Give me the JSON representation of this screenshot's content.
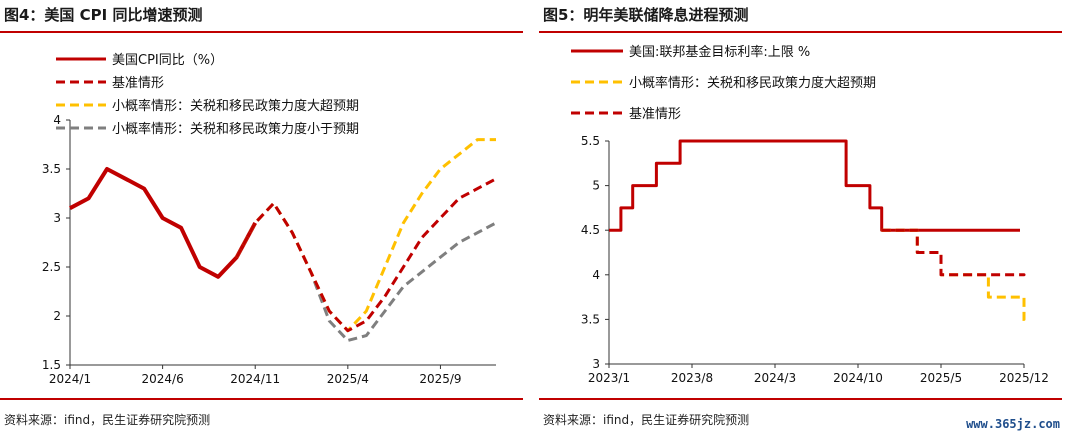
{
  "chart_data": [
    {
      "type": "line",
      "title": "图4：美国 CPI 同比增速预测",
      "xlabel": "",
      "ylabel": "",
      "ylim": [
        1.5,
        4
      ],
      "yticks": [
        "1.5",
        "2",
        "2.5",
        "3",
        "3.5",
        "4"
      ],
      "xticks": [
        "2024/1",
        "2024/6",
        "2024/11",
        "2025/4",
        "2025/9"
      ],
      "x_range": [
        "2024/1",
        "2025/12"
      ],
      "legend_position": "top-left",
      "series": [
        {
          "name": "美国CPI同比（%）",
          "color": "#c00000",
          "style": "solid",
          "x": [
            "2024/1",
            "2024/2",
            "2024/3",
            "2024/4",
            "2024/5",
            "2024/6",
            "2024/7",
            "2024/8",
            "2024/9",
            "2024/10",
            "2024/11"
          ],
          "values": [
            3.1,
            3.2,
            3.5,
            3.4,
            3.3,
            3.0,
            2.9,
            2.5,
            2.4,
            2.6,
            2.95
          ]
        },
        {
          "name": "基准情形",
          "color": "#c00000",
          "style": "dashed",
          "x": [
            "2024/10",
            "2024/11",
            "2024/12",
            "2025/1",
            "2025/2",
            "2025/3",
            "2025/4",
            "2025/5",
            "2025/6",
            "2025/7",
            "2025/8",
            "2025/9",
            "2025/10",
            "2025/11",
            "2025/12"
          ],
          "values": [
            2.6,
            2.95,
            3.15,
            2.85,
            2.45,
            2.05,
            1.85,
            1.95,
            2.2,
            2.5,
            2.8,
            3.0,
            3.2,
            3.3,
            3.4
          ]
        },
        {
          "name": "小概率情形：关税和移民政策力度大超预期",
          "color": "#ffc000",
          "style": "dashed",
          "x": [
            "2024/10",
            "2024/11",
            "2024/12",
            "2025/1",
            "2025/2",
            "2025/3",
            "2025/4",
            "2025/5",
            "2025/6",
            "2025/7",
            "2025/8",
            "2025/9",
            "2025/10",
            "2025/11",
            "2025/12"
          ],
          "values": [
            2.6,
            2.95,
            3.15,
            2.85,
            2.45,
            2.05,
            1.85,
            2.05,
            2.5,
            2.95,
            3.25,
            3.5,
            3.65,
            3.8,
            3.8
          ]
        },
        {
          "name": "小概率情形：关税和移民政策力度小于预期",
          "color": "#7f7f7f",
          "style": "dashed",
          "x": [
            "2024/10",
            "2024/11",
            "2024/12",
            "2025/1",
            "2025/2",
            "2025/3",
            "2025/4",
            "2025/5",
            "2025/6",
            "2025/7",
            "2025/8",
            "2025/9",
            "2025/10",
            "2025/11",
            "2025/12"
          ],
          "values": [
            2.6,
            2.95,
            3.15,
            2.85,
            2.45,
            1.95,
            1.75,
            1.8,
            2.05,
            2.3,
            2.45,
            2.6,
            2.75,
            2.85,
            2.95
          ]
        }
      ],
      "source": "资料来源：ifind，民生证券研究院预测"
    },
    {
      "type": "line",
      "title": "图5：明年美联储降息进程预测",
      "xlabel": "",
      "ylabel": "",
      "ylim": [
        3,
        5.5
      ],
      "yticks": [
        "3",
        "3.5",
        "4",
        "4.5",
        "5",
        "5.5"
      ],
      "xticks": [
        "2023/1",
        "2023/8",
        "2024/3",
        "2024/10",
        "2025/5",
        "2025/12"
      ],
      "x_range": [
        "2023/1",
        "2025/12"
      ],
      "legend_position": "top-left",
      "series": [
        {
          "name": "美国:联邦基金目标利率:上限 %",
          "color": "#c00000",
          "style": "step-solid",
          "x": [
            "2023/1",
            "2023/2",
            "2023/3",
            "2023/5",
            "2023/7",
            "2024/9",
            "2024/11",
            "2024/12"
          ],
          "values": [
            4.5,
            4.75,
            5.0,
            5.25,
            5.5,
            5.0,
            4.75,
            4.5
          ]
        },
        {
          "name": "小概率情形：关税和移民政策力度大超预期",
          "color": "#ffc000",
          "style": "step-dashed",
          "x": [
            "2024/12",
            "2025/3",
            "2025/5",
            "2025/6",
            "2025/9",
            "2025/12"
          ],
          "values": [
            4.5,
            4.25,
            4.0,
            4.0,
            3.75,
            3.5
          ]
        },
        {
          "name": "基准情形",
          "color": "#c00000",
          "style": "step-dashed",
          "x": [
            "2024/12",
            "2025/3",
            "2025/5",
            "2025/12"
          ],
          "values": [
            4.5,
            4.25,
            4.0,
            4.0
          ]
        }
      ],
      "source": "资料来源：ifind，民生证券研究院预测"
    }
  ],
  "watermark": "www.365jz.com"
}
